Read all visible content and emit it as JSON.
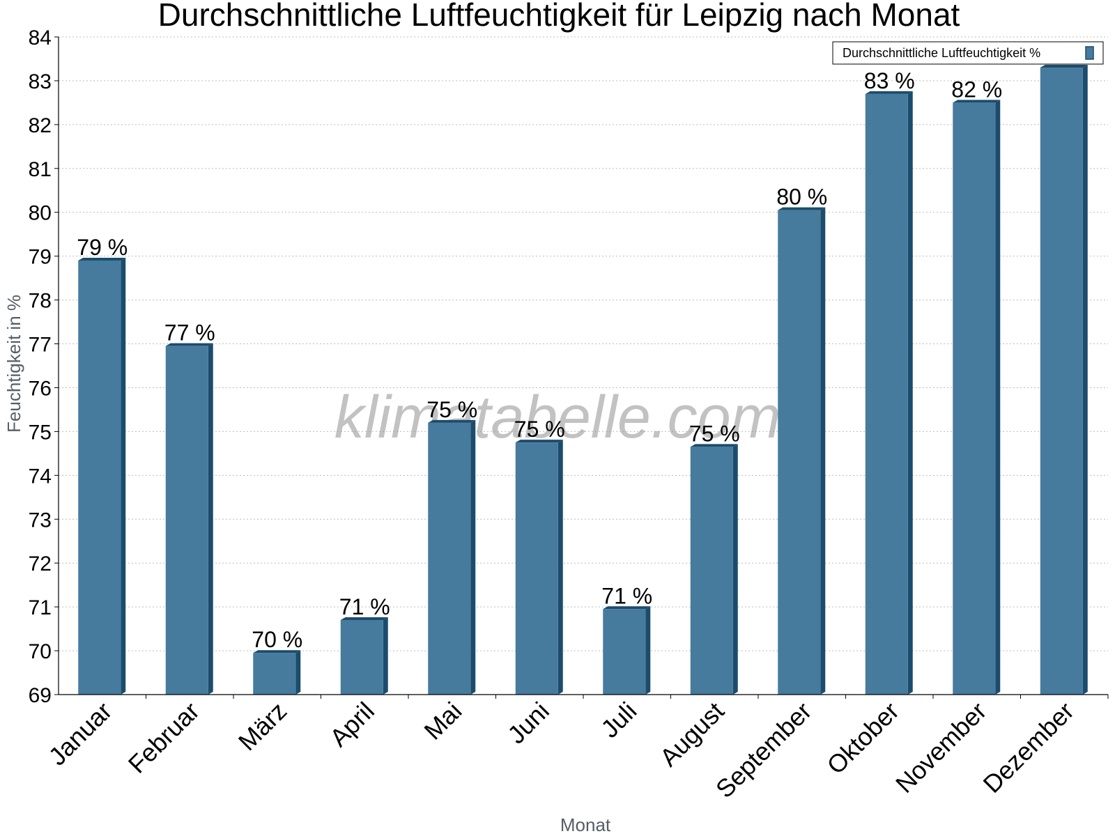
{
  "chart_data": {
    "type": "bar",
    "title": "Durchschnittliche Luftfeuchtigkeit für Leipzig nach Monat",
    "xlabel": "Monat",
    "ylabel": "Feuchtigkeit in %",
    "ylim": [
      69,
      84
    ],
    "yticks": [
      69,
      70,
      71,
      72,
      73,
      74,
      75,
      76,
      77,
      78,
      79,
      80,
      81,
      82,
      83,
      84
    ],
    "categories": [
      "Januar",
      "Februar",
      "März",
      "April",
      "Mai",
      "Juni",
      "Juli",
      "August",
      "September",
      "Oktober",
      "November",
      "Dezember"
    ],
    "series": [
      {
        "name": "Durchschnittliche Luftfeuchtigkeit %",
        "values": [
          78.9,
          76.95,
          69.95,
          70.7,
          75.2,
          74.75,
          70.95,
          74.65,
          80.05,
          82.7,
          82.5,
          83.3
        ],
        "data_labels": [
          "79 %",
          "77 %",
          "70 %",
          "71 %",
          "75 %",
          "75 %",
          "71 %",
          "75 %",
          "80 %",
          "83 %",
          "82 %",
          ""
        ]
      }
    ],
    "grid": true,
    "legend": "top-right",
    "colors": {
      "bar": "#467b9e",
      "bar_side": "#1c4c6c"
    }
  },
  "watermark": "klimatabelle.com"
}
